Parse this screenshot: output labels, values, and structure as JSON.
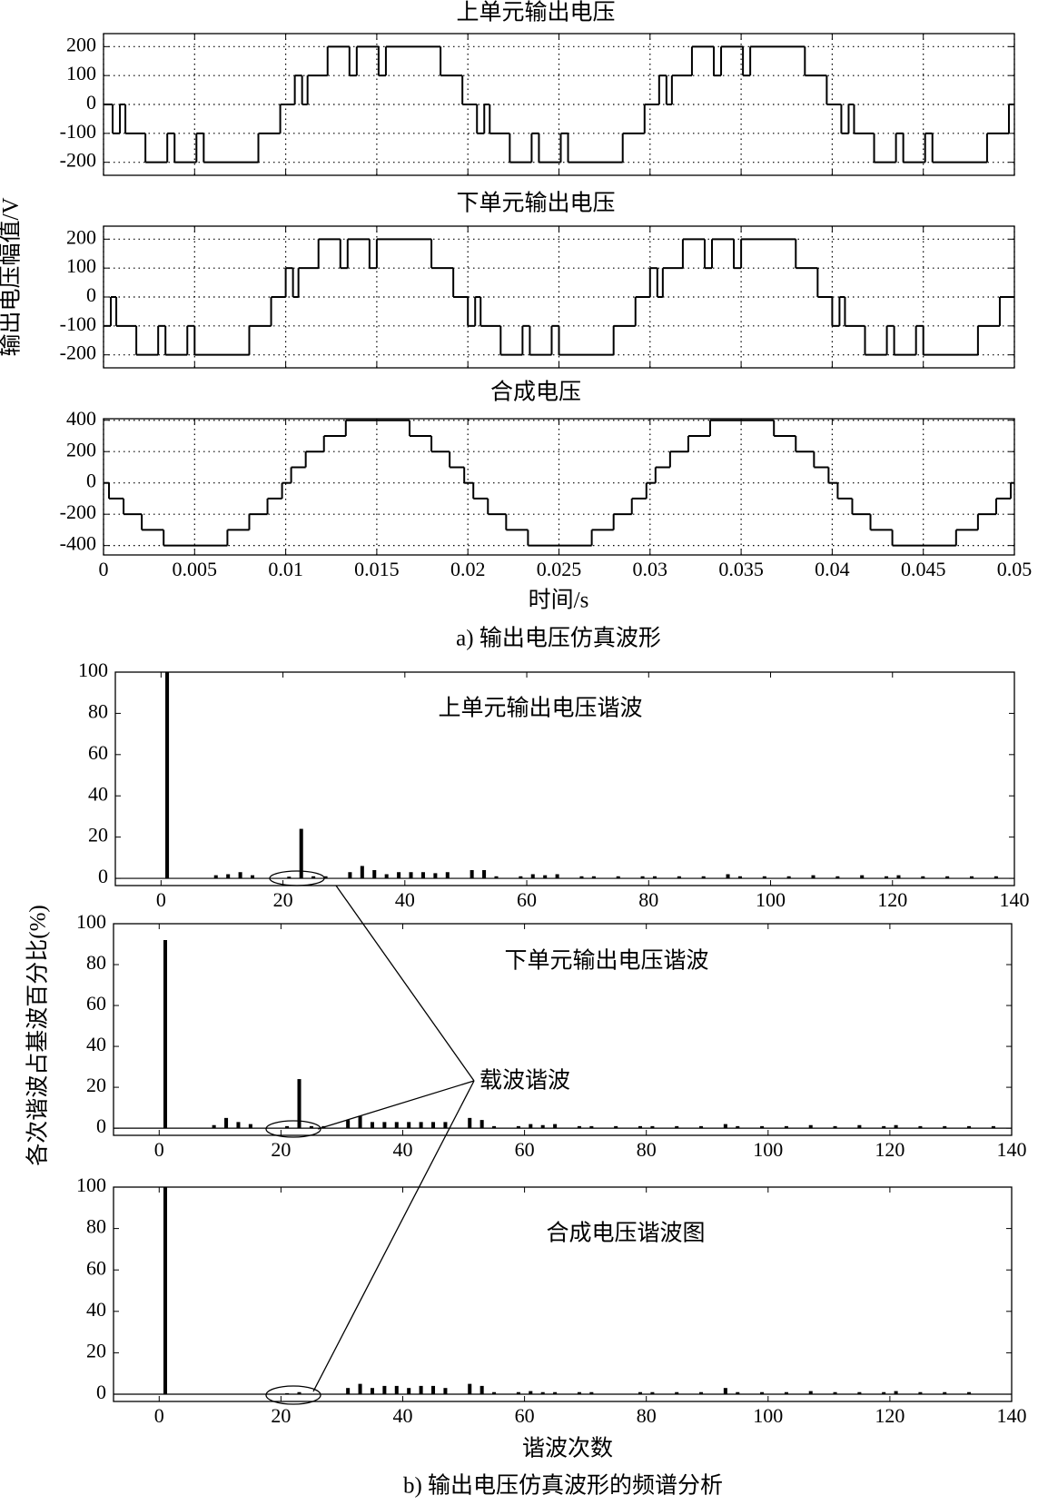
{
  "figure": {
    "y_label_a": "输出电压幅值/V",
    "x_label_a": "时间/s",
    "caption_a": "a) 输出电压仿真波形",
    "y_label_b": "各次谐波占基波百分比(%)",
    "x_label_b": "谐波次数",
    "caption_b": "b) 输出电压仿真波形的频谱分析",
    "annotation": "载波谐波"
  },
  "chart_data": [
    {
      "type": "step",
      "title": "上单元输出电压",
      "color": "#000000",
      "grid": true,
      "show_xtick_labels": false,
      "xlim": [
        0,
        0.05
      ],
      "ylim": [
        -245,
        245
      ],
      "yticks": [
        -200,
        -100,
        0,
        100,
        200
      ],
      "xticks": [
        0,
        0.005,
        0.01,
        0.015,
        0.02,
        0.025,
        0.03,
        0.035,
        0.04,
        0.045,
        0.05
      ],
      "x": [
        0,
        0.0005,
        0.0009,
        0.0012,
        0.0023,
        0.0035,
        0.0039,
        0.0051,
        0.0055,
        0.0085,
        0.0097,
        0.0105,
        0.0109,
        0.0112,
        0.0123,
        0.0135,
        0.0139,
        0.0151,
        0.0155,
        0.0185,
        0.0197,
        0.0205,
        0.0209,
        0.0212,
        0.0223,
        0.0235,
        0.0239,
        0.0251,
        0.0255,
        0.0285,
        0.0297,
        0.0305,
        0.0309,
        0.0312,
        0.0323,
        0.0335,
        0.0339,
        0.0351,
        0.0355,
        0.0385,
        0.0397,
        0.0405,
        0.0409,
        0.0412,
        0.0423,
        0.0435,
        0.0439,
        0.0451,
        0.0455,
        0.0485,
        0.0497
      ],
      "values": [
        0,
        -100,
        0,
        -100,
        -200,
        -100,
        -200,
        -100,
        -200,
        -100,
        0,
        100,
        0,
        100,
        200,
        100,
        200,
        100,
        200,
        100,
        0,
        -100,
        0,
        -100,
        -200,
        -100,
        -200,
        -100,
        -200,
        -100,
        0,
        100,
        0,
        100,
        200,
        100,
        200,
        100,
        200,
        100,
        0,
        -100,
        0,
        -100,
        -200,
        -100,
        -200,
        -100,
        -200,
        -100,
        0
      ]
    },
    {
      "type": "step",
      "title": "下单元输出电压",
      "color": "#000000",
      "grid": true,
      "show_xtick_labels": false,
      "xlim": [
        0,
        0.05
      ],
      "ylim": [
        -245,
        245
      ],
      "yticks": [
        -200,
        -100,
        0,
        100,
        200
      ],
      "xticks": [
        0,
        0.005,
        0.01,
        0.015,
        0.02,
        0.025,
        0.03,
        0.035,
        0.04,
        0.045,
        0.05
      ],
      "x": [
        0,
        0.0004,
        0.0007,
        0.0018,
        0.003,
        0.0034,
        0.0046,
        0.005,
        0.008,
        0.0092,
        0.01,
        0.0104,
        0.0107,
        0.0118,
        0.013,
        0.0134,
        0.0146,
        0.015,
        0.018,
        0.0192,
        0.02,
        0.0204,
        0.0207,
        0.0218,
        0.023,
        0.0234,
        0.0246,
        0.025,
        0.028,
        0.0292,
        0.03,
        0.0304,
        0.0307,
        0.0318,
        0.033,
        0.0334,
        0.0346,
        0.035,
        0.038,
        0.0392,
        0.04,
        0.0404,
        0.0407,
        0.0418,
        0.043,
        0.0434,
        0.0446,
        0.045,
        0.048,
        0.0492
      ],
      "values": [
        -100,
        0,
        -100,
        -200,
        -100,
        -200,
        -100,
        -200,
        -100,
        0,
        100,
        0,
        100,
        200,
        100,
        200,
        100,
        200,
        100,
        0,
        -100,
        0,
        -100,
        -200,
        -100,
        -200,
        -100,
        -200,
        -100,
        0,
        100,
        0,
        100,
        200,
        100,
        200,
        100,
        200,
        100,
        0,
        -100,
        0,
        -100,
        -200,
        -100,
        -200,
        -100,
        -200,
        -100,
        0
      ]
    },
    {
      "type": "step",
      "title": "合成电压",
      "color": "#000000",
      "grid": true,
      "show_xtick_labels": true,
      "xlim": [
        0,
        0.05
      ],
      "ylim": [
        -460,
        410
      ],
      "yticks": [
        -400,
        -200,
        0,
        200,
        400
      ],
      "xticks": [
        0,
        0.005,
        0.01,
        0.015,
        0.02,
        0.025,
        0.03,
        0.035,
        0.04,
        0.045,
        0.05
      ],
      "x": [
        0,
        0.0003,
        0.0011,
        0.0021,
        0.0033,
        0.0068,
        0.008,
        0.009,
        0.0098,
        0.0103,
        0.0111,
        0.0121,
        0.0133,
        0.0168,
        0.018,
        0.019,
        0.0198,
        0.0203,
        0.0211,
        0.0221,
        0.0233,
        0.0268,
        0.028,
        0.029,
        0.0298,
        0.0303,
        0.0311,
        0.0321,
        0.0333,
        0.0368,
        0.038,
        0.039,
        0.0398,
        0.0403,
        0.0411,
        0.0421,
        0.0433,
        0.0468,
        0.048,
        0.049,
        0.0498
      ],
      "values": [
        0,
        -100,
        -200,
        -300,
        -400,
        -300,
        -200,
        -100,
        0,
        100,
        200,
        300,
        400,
        300,
        200,
        100,
        0,
        -100,
        -200,
        -300,
        -400,
        -300,
        -200,
        -100,
        0,
        100,
        200,
        300,
        400,
        300,
        200,
        100,
        0,
        -100,
        -200,
        -300,
        -400,
        -300,
        -200,
        -100,
        0
      ]
    },
    {
      "type": "bar",
      "title": "上单元输出电压谐波",
      "color": "#000000",
      "grid": false,
      "xlim": [
        -7.5,
        140
      ],
      "ylim": [
        -3.5,
        100
      ],
      "yticks": [
        0,
        20,
        40,
        60,
        80,
        100
      ],
      "xticks": [
        0,
        20,
        40,
        60,
        80,
        100,
        120,
        140
      ],
      "x": [
        1,
        9,
        11,
        13,
        15,
        21,
        23,
        25,
        27,
        31,
        33,
        35,
        37,
        39,
        41,
        43,
        45,
        47,
        51,
        53,
        55,
        59,
        61,
        63,
        65,
        69,
        71,
        75,
        79,
        81,
        85,
        89,
        93,
        95,
        99,
        103,
        107,
        111,
        115,
        119,
        121,
        125,
        129,
        133,
        137
      ],
      "values": [
        100,
        1.5,
        2,
        3,
        1.5,
        0.8,
        24,
        1,
        1,
        3,
        6,
        4,
        2,
        3,
        3,
        3,
        2.5,
        3,
        4,
        4,
        1,
        1,
        2,
        1.5,
        2,
        1,
        1,
        1,
        1,
        1,
        1,
        1,
        2,
        1,
        1,
        1,
        1.5,
        1,
        1.5,
        1,
        1.5,
        1,
        1,
        1,
        1
      ]
    },
    {
      "type": "bar",
      "title": "下单元输出电压谐波",
      "color": "#000000",
      "grid": false,
      "xlim": [
        -7.5,
        140
      ],
      "ylim": [
        -3.5,
        100
      ],
      "yticks": [
        0,
        20,
        40,
        60,
        80,
        100
      ],
      "xticks": [
        0,
        20,
        40,
        60,
        80,
        100,
        120,
        140
      ],
      "x": [
        1,
        9,
        11,
        13,
        15,
        21,
        23,
        25,
        27,
        31,
        33,
        35,
        37,
        39,
        41,
        43,
        45,
        47,
        51,
        53,
        55,
        59,
        61,
        63,
        65,
        69,
        71,
        75,
        79,
        81,
        85,
        89,
        93,
        95,
        99,
        103,
        107,
        111,
        115,
        119,
        121,
        125,
        129,
        133,
        137
      ],
      "values": [
        92,
        1.5,
        5,
        3,
        2,
        1,
        24,
        1,
        1,
        4,
        6,
        3,
        3,
        3,
        3,
        3,
        3,
        3,
        5,
        4,
        1,
        1,
        2,
        1.5,
        2,
        1,
        1,
        1,
        1,
        1,
        1,
        1,
        2,
        1,
        1,
        1,
        1.5,
        1,
        1.5,
        1,
        1.5,
        1,
        1,
        1,
        1
      ]
    },
    {
      "type": "bar",
      "title": "合成电压谐波图",
      "color": "#000000",
      "grid": false,
      "xlim": [
        -7.5,
        140
      ],
      "ylim": [
        -3.5,
        100
      ],
      "yticks": [
        0,
        20,
        40,
        60,
        80,
        100
      ],
      "xticks": [
        0,
        20,
        40,
        60,
        80,
        100,
        120,
        140
      ],
      "x": [
        1,
        21,
        23,
        31,
        33,
        35,
        37,
        39,
        41,
        43,
        45,
        47,
        51,
        53,
        55,
        59,
        61,
        63,
        65,
        69,
        71,
        79,
        81,
        85,
        89,
        93,
        95,
        99,
        103,
        107,
        111,
        115,
        119,
        121,
        125,
        129,
        133
      ],
      "values": [
        100,
        0.5,
        1,
        3,
        5,
        3,
        4,
        4,
        3,
        4,
        4,
        3,
        5,
        4,
        1,
        1,
        1.5,
        1,
        1,
        1,
        1,
        1,
        1,
        1,
        1,
        3,
        1,
        1,
        1,
        1.5,
        1,
        1,
        1,
        1.5,
        1,
        1,
        1
      ]
    }
  ]
}
